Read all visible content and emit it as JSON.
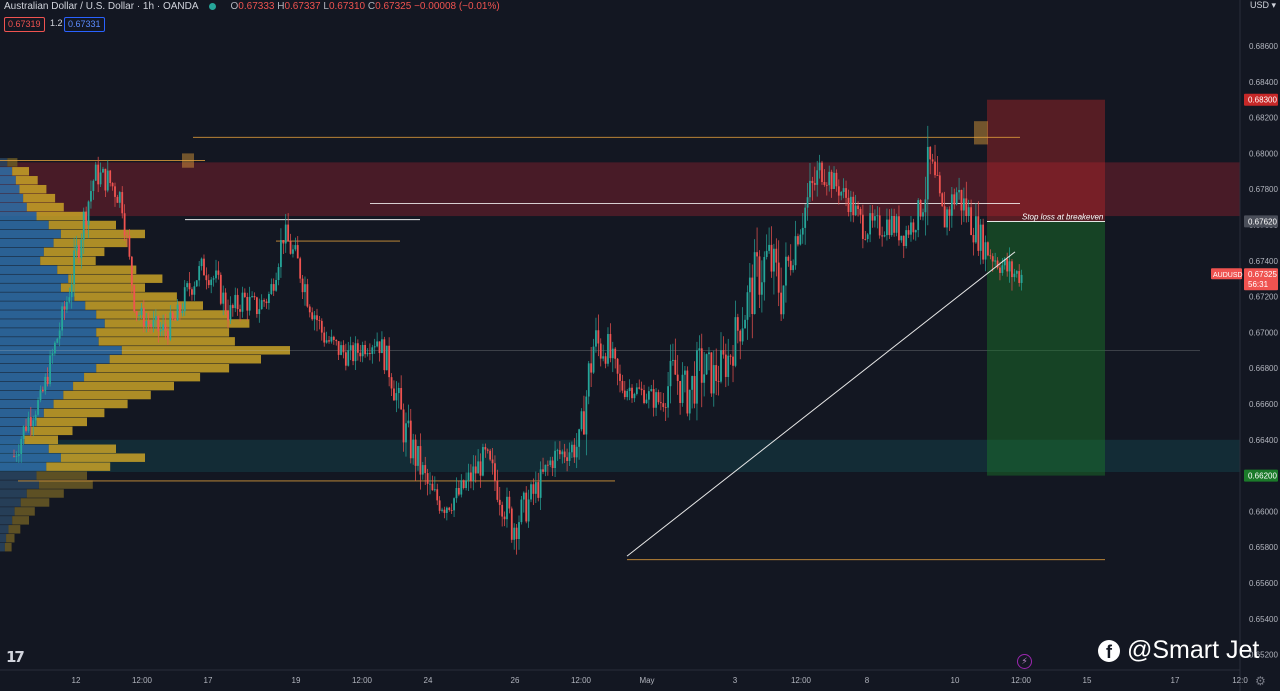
{
  "header": {
    "symbol": "Australian Dollar / U.S. Dollar · 1h · OANDA",
    "o_label": "O",
    "o_value": "0.67333",
    "h_label": "H",
    "h_value": "0.67337",
    "l_label": "L",
    "l_value": "0.67310",
    "c_label": "C",
    "c_value": "0.67325",
    "change": "−0.00008 (−0.01%)",
    "bid": "0.67319",
    "spread": "1.2",
    "ask": "0.67331",
    "currency": "USD"
  },
  "watermark": {
    "text": "@Smart Jet",
    "icon": "facebook-icon"
  },
  "chart_data": {
    "type": "candlestick",
    "symbol": "AUDUSD",
    "timeframe": "1h",
    "ylim": [
      0.654,
      0.688
    ],
    "y_ticks": [
      "0.68600",
      "0.68400",
      "0.68200",
      "0.68000",
      "0.67800",
      "0.67600",
      "0.67400",
      "0.67200",
      "0.67000",
      "0.66800",
      "0.66600",
      "0.66400",
      "0.66200",
      "0.66000",
      "0.65800",
      "0.65600",
      "0.65400",
      "0.65200"
    ],
    "x_ticks": [
      "12",
      "12:00",
      "17",
      "19",
      "12:00",
      "24",
      "26",
      "12:00",
      "May",
      "3",
      "12:00",
      "8",
      "10",
      "12:00",
      "15",
      "17",
      "12:0"
    ],
    "price_path": [
      [
        0.664,
        0.6622
      ],
      [
        0.666,
        0.6642
      ],
      [
        0.667,
        0.6655
      ],
      [
        0.67,
        0.6682
      ],
      [
        0.673,
        0.671
      ],
      [
        0.677,
        0.6745
      ],
      [
        0.6797,
        0.678
      ],
      [
        0.6795,
        0.6775
      ],
      [
        0.6785,
        0.6765
      ],
      [
        0.672,
        0.6705
      ],
      [
        0.6712,
        0.6698
      ],
      [
        0.671,
        0.669
      ],
      [
        0.6715,
        0.6698
      ],
      [
        0.6735,
        0.6715
      ],
      [
        0.6745,
        0.6728
      ],
      [
        0.6738,
        0.672
      ],
      [
        0.672,
        0.67
      ],
      [
        0.6728,
        0.671
      ],
      [
        0.6722,
        0.6705
      ],
      [
        0.673,
        0.6712
      ],
      [
        0.6765,
        0.6745
      ],
      [
        0.675,
        0.673
      ],
      [
        0.673,
        0.6705
      ],
      [
        0.6705,
        0.669
      ],
      [
        0.67,
        0.6682
      ],
      [
        0.6695,
        0.6678
      ],
      [
        0.67,
        0.6685
      ],
      [
        0.6705,
        0.6688
      ],
      [
        0.669,
        0.6665
      ],
      [
        0.666,
        0.663
      ],
      [
        0.664,
        0.6615
      ],
      [
        0.662,
        0.6598
      ],
      [
        0.6612,
        0.6595
      ],
      [
        0.6618,
        0.66
      ],
      [
        0.663,
        0.661
      ],
      [
        0.664,
        0.662
      ],
      [
        0.6625,
        0.66
      ],
      [
        0.6605,
        0.6578
      ],
      [
        0.6615,
        0.659
      ],
      [
        0.6625,
        0.6605
      ],
      [
        0.664,
        0.662
      ],
      [
        0.6642,
        0.6625
      ],
      [
        0.665,
        0.6625
      ],
      [
        0.6715,
        0.667
      ],
      [
        0.6705,
        0.668
      ],
      [
        0.668,
        0.666
      ],
      [
        0.6675,
        0.6662
      ],
      [
        0.6672,
        0.6658
      ],
      [
        0.667,
        0.6652
      ],
      [
        0.6695,
        0.666
      ],
      [
        0.668,
        0.665
      ],
      [
        0.67,
        0.666
      ],
      [
        0.669,
        0.666
      ],
      [
        0.67,
        0.667
      ],
      [
        0.6725,
        0.669
      ],
      [
        0.675,
        0.6705
      ],
      [
        0.676,
        0.6725
      ],
      [
        0.6745,
        0.67
      ],
      [
        0.6765,
        0.674
      ],
      [
        0.679,
        0.676
      ],
      [
        0.6805,
        0.678
      ],
      [
        0.679,
        0.6775
      ],
      [
        0.6782,
        0.6765
      ],
      [
        0.677,
        0.675
      ],
      [
        0.6768,
        0.6748
      ],
      [
        0.6772,
        0.6752
      ],
      [
        0.6765,
        0.6745
      ],
      [
        0.677,
        0.6755
      ],
      [
        0.6815,
        0.6765
      ],
      [
        0.6775,
        0.675
      ],
      [
        0.6792,
        0.6765
      ],
      [
        0.6778,
        0.675
      ],
      [
        0.676,
        0.6738
      ],
      [
        0.6748,
        0.6732
      ],
      [
        0.6745,
        0.6722
      ],
      [
        0.6738,
        0.6725
      ]
    ],
    "volume_profile": {
      "value_area": [
        0.6625,
        0.679
      ],
      "poc_price": 0.669,
      "rows": [
        [
          0.6795,
          0.06
        ],
        [
          0.679,
          0.1
        ],
        [
          0.6785,
          0.13
        ],
        [
          0.678,
          0.16
        ],
        [
          0.6775,
          0.19
        ],
        [
          0.677,
          0.22
        ],
        [
          0.6765,
          0.3
        ],
        [
          0.676,
          0.4
        ],
        [
          0.6755,
          0.5
        ],
        [
          0.675,
          0.44
        ],
        [
          0.6745,
          0.36
        ],
        [
          0.674,
          0.33
        ],
        [
          0.6735,
          0.47
        ],
        [
          0.673,
          0.56
        ],
        [
          0.6725,
          0.5
        ],
        [
          0.672,
          0.61
        ],
        [
          0.6715,
          0.7
        ],
        [
          0.671,
          0.79
        ],
        [
          0.6705,
          0.86
        ],
        [
          0.67,
          0.79
        ],
        [
          0.6695,
          0.81
        ],
        [
          0.669,
          1.0
        ],
        [
          0.6685,
          0.9
        ],
        [
          0.668,
          0.79
        ],
        [
          0.6675,
          0.69
        ],
        [
          0.667,
          0.6
        ],
        [
          0.6665,
          0.52
        ],
        [
          0.666,
          0.44
        ],
        [
          0.6655,
          0.36
        ],
        [
          0.665,
          0.3
        ],
        [
          0.6645,
          0.25
        ],
        [
          0.664,
          0.2
        ],
        [
          0.6635,
          0.4
        ],
        [
          0.663,
          0.5
        ],
        [
          0.6625,
          0.38
        ],
        [
          0.662,
          0.3
        ],
        [
          0.6615,
          0.32
        ],
        [
          0.661,
          0.22
        ],
        [
          0.6605,
          0.17
        ],
        [
          0.66,
          0.12
        ],
        [
          0.6595,
          0.1
        ],
        [
          0.659,
          0.07
        ],
        [
          0.6585,
          0.05
        ],
        [
          0.658,
          0.04
        ]
      ]
    },
    "zones": [
      {
        "name": "supply-zone",
        "color": "#5b1d2a",
        "from": 0.6765,
        "to": 0.6795,
        "x_start": 0.0,
        "x_end": 1.0
      },
      {
        "name": "demand-zone",
        "color": "#14343e",
        "from": 0.6622,
        "to": 0.664,
        "x_start": 0.0,
        "x_end": 1.0
      }
    ],
    "position": {
      "side": "short",
      "entry": 0.6762,
      "stop": 0.683,
      "target": 0.662,
      "stop_label_price": "0.68300",
      "entry_label_price": "0.67620",
      "target_label_price": "0.66200",
      "note": "Stop loss at breakeven"
    },
    "levels": [
      {
        "name": "level-top",
        "price": 0.6809,
        "color": "#e6a23c"
      },
      {
        "name": "level-high",
        "price": 0.6796,
        "color": "#e6a23c"
      },
      {
        "name": "level-mid",
        "price": 0.6772,
        "color": "#ffffff"
      },
      {
        "name": "level-white",
        "price": 0.6763,
        "color": "#ffffff"
      },
      {
        "name": "level-orange-mid",
        "price": 0.6751,
        "color": "#e6a23c"
      },
      {
        "name": "level-low",
        "price": 0.6617,
        "color": "#e6a23c"
      },
      {
        "name": "level-bottom",
        "price": 0.6573,
        "color": "#e6a23c"
      }
    ],
    "trendline": {
      "from": 0.6575,
      "to": 0.6745
    },
    "last_price": {
      "symbol": "AUDUSD",
      "value": "0.67325",
      "countdown": "56:31"
    }
  }
}
